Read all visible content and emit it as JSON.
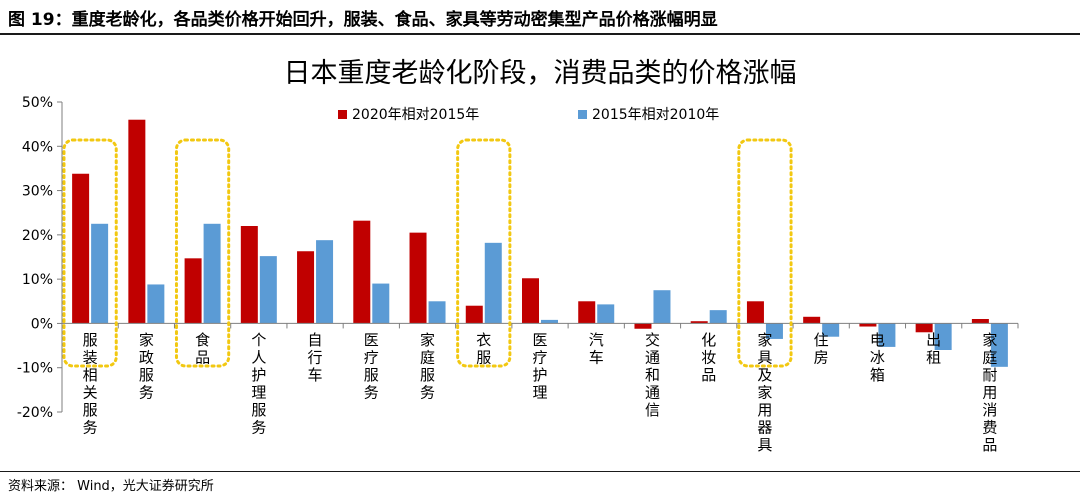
{
  "figure": {
    "caption": "图 19：重度老龄化，各品类价格开始回升，服装、食品、家具等劳动密集型产品价格涨幅明显",
    "source": "资料来源： Wind，光大证券研究所"
  },
  "chart_data": {
    "type": "bar",
    "title": "日本重度老龄化阶段，消费品类的价格涨幅",
    "xlabel": "",
    "ylabel": "",
    "ylim": [
      -20,
      50
    ],
    "y_ticks": [
      "50%",
      "40%",
      "30%",
      "20%",
      "10%",
      "0%",
      "-10%",
      "-20%"
    ],
    "y_tick_values": [
      50,
      40,
      30,
      20,
      10,
      0,
      -10,
      -20
    ],
    "grid": false,
    "legend_position": "top",
    "categories": [
      "服装相关服务",
      "家政服务",
      "食品",
      "个人护理服务",
      "自行车",
      "医疗服务",
      "家庭服务",
      "衣服",
      "医疗护理",
      "汽车",
      "交通和通信",
      "化妆品",
      "家具及家用器具",
      "住房",
      "电冰箱",
      "出租",
      "家庭耐用消费品"
    ],
    "series": [
      {
        "name": "2020年相对2015年",
        "color": "#c00000",
        "values": [
          33.8,
          46,
          14.7,
          22,
          16.3,
          23.2,
          20.5,
          4,
          10.2,
          5,
          -1.2,
          0.5,
          5,
          1.5,
          -0.7,
          -2,
          1
        ]
      },
      {
        "name": "2015年相对2010年",
        "color": "#5b9bd5",
        "values": [
          22.5,
          8.8,
          22.5,
          15.2,
          18.8,
          9,
          5,
          18.2,
          0.8,
          4.3,
          7.5,
          3,
          -3.5,
          -3,
          -5.3,
          -6,
          -9.8
        ]
      }
    ],
    "highlighted_categories": [
      "服装相关服务",
      "食品",
      "衣服",
      "家具及家用器具"
    ],
    "highlight_color": "#f2c811"
  }
}
